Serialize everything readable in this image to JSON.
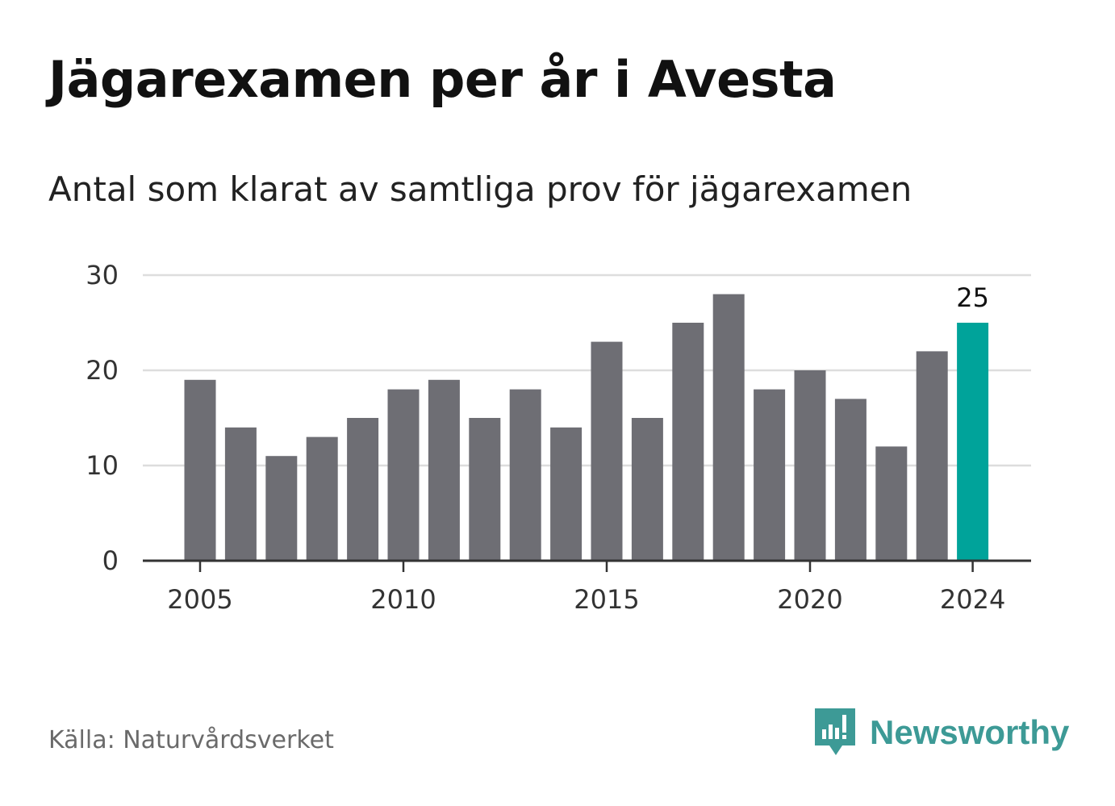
{
  "header": {
    "title": "Jägarexamen per år i Avesta",
    "subtitle": "Antal som klarat av samtliga prov för jägarexamen"
  },
  "footer": {
    "source": "Källa: Naturvårdsverket",
    "brand": "Newsworthy"
  },
  "colors": {
    "bar": "#6e6e74",
    "highlight": "#00a39a",
    "grid": "#dddddd",
    "axis": "#333333",
    "brand": "#3d9a96"
  },
  "icons": {
    "brand_logo": "newsworthy-logo-icon"
  },
  "chart_data": {
    "type": "bar",
    "title": "Jägarexamen per år i Avesta",
    "subtitle": "Antal som klarat av samtliga prov för jägarexamen",
    "xlabel": "",
    "ylabel": "",
    "x": [
      2005,
      2006,
      2007,
      2008,
      2009,
      2010,
      2011,
      2012,
      2013,
      2014,
      2015,
      2016,
      2017,
      2018,
      2019,
      2020,
      2021,
      2022,
      2023,
      2024
    ],
    "values": [
      19,
      14,
      11,
      13,
      15,
      18,
      19,
      15,
      18,
      14,
      23,
      15,
      25,
      28,
      18,
      20,
      17,
      12,
      22,
      25
    ],
    "ylim": [
      0,
      30
    ],
    "y_ticks": [
      0,
      10,
      20,
      30
    ],
    "x_ticks": [
      2005,
      2010,
      2015,
      2020,
      2024
    ],
    "highlight": {
      "x": 2024,
      "label": "25"
    },
    "grid": true,
    "legend": "none"
  }
}
